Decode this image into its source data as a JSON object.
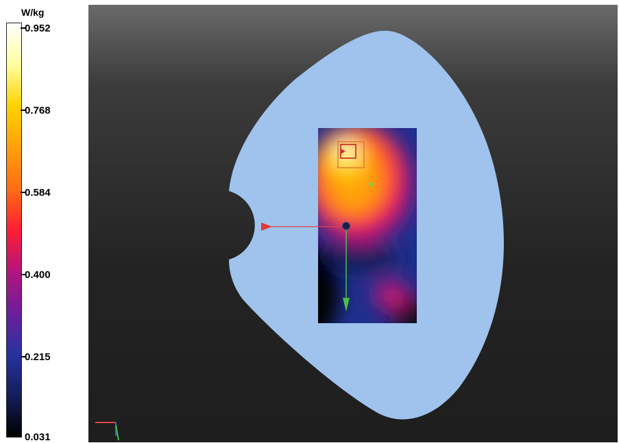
{
  "chart_data": {
    "type": "heatmap",
    "unit": "W/kg",
    "range": [
      0.031,
      0.952
    ],
    "colorbar_ticks": [
      0.952,
      0.768,
      0.584,
      0.4,
      0.215,
      0.031
    ],
    "colorbar_tick_labels": [
      "0.952",
      "0.768",
      "0.584",
      "0.400",
      "0.215",
      "0.031"
    ],
    "colormap": [
      {
        "value": 0.952,
        "color": "#ffffff"
      },
      {
        "value": 0.86,
        "color": "#ffffa0"
      },
      {
        "value": 0.768,
        "color": "#ffd200"
      },
      {
        "value": 0.676,
        "color": "#ffa00a"
      },
      {
        "value": 0.584,
        "color": "#ff6e14"
      },
      {
        "value": 0.492,
        "color": "#ff1e32"
      },
      {
        "value": 0.4,
        "color": "#b4147d"
      },
      {
        "value": 0.308,
        "color": "#6e1e9b"
      },
      {
        "value": 0.215,
        "color": "#2832a0"
      },
      {
        "value": 0.123,
        "color": "#141e5a"
      },
      {
        "value": 0.031,
        "color": "#000000"
      }
    ],
    "phantom_color": "#9fc3ec",
    "background_color": "#262626",
    "peak_value": 0.952,
    "secondary_hotspot_value": 0.4
  }
}
